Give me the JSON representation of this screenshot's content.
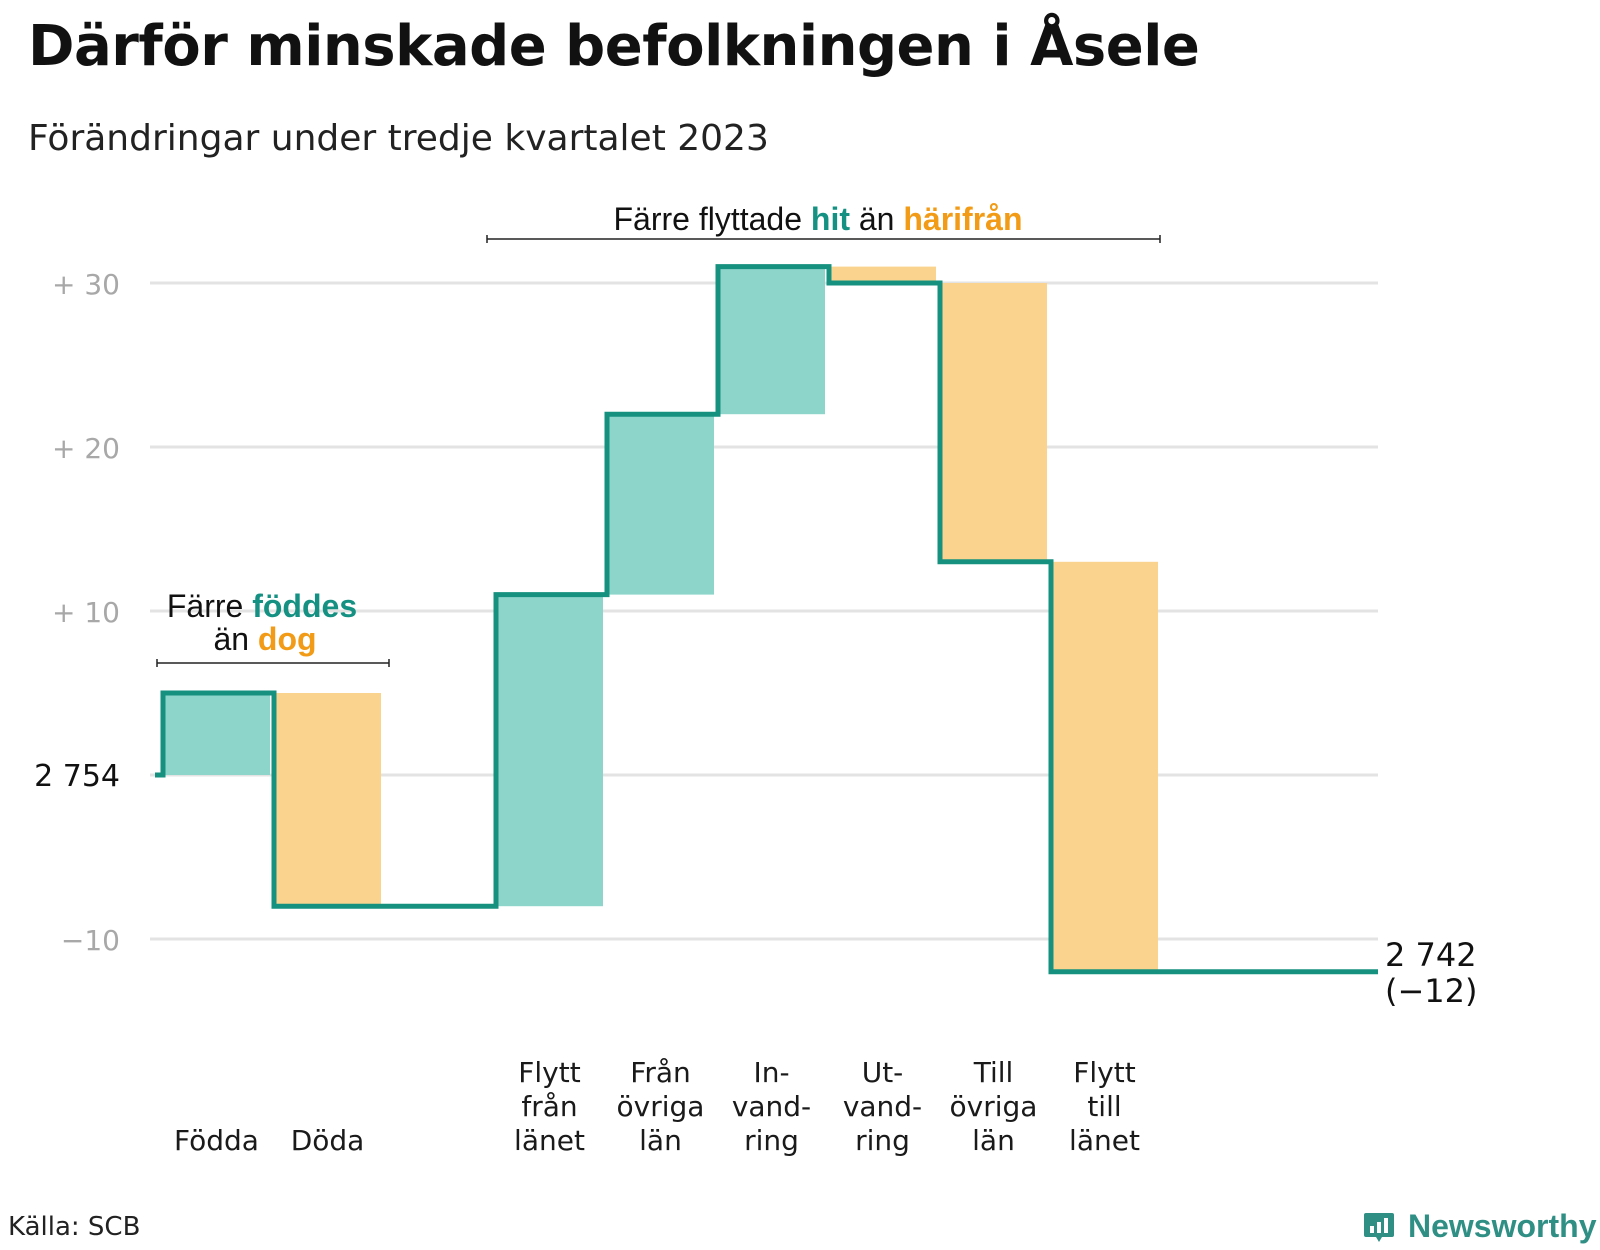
{
  "title": "Därför minskade befolkningen i Åsele",
  "subtitle": "Förändringar under tredje kvartalet 2023",
  "source": "Källa: SCB",
  "brand": {
    "name": "Newsworthy",
    "icon": "bar-chart-speech-bubble-icon"
  },
  "colors": {
    "increase": "#8dd5cb",
    "decrease": "#fad48f",
    "line": "#16917f",
    "accent_teal": "#149182",
    "accent_orange": "#f29b16",
    "grid": "#e3e3e3"
  },
  "annotations": {
    "births_deaths": {
      "part1": "Färre",
      "part2": "föddes",
      "part3": "än",
      "part4": "dog"
    },
    "migration": {
      "part1": "Färre flyttade",
      "part2": "hit",
      "part3": "än",
      "part4": "härifrån"
    }
  },
  "chart_data": {
    "type": "waterfall",
    "start": {
      "label": "2 754",
      "value": 2754
    },
    "end": {
      "label": "2 742",
      "change_label": "(−12)",
      "value": 2742,
      "change": -12
    },
    "y_ticks": [
      {
        "value": 30,
        "label": "+  30"
      },
      {
        "value": 20,
        "label": "+  20"
      },
      {
        "value": 10,
        "label": "+  10"
      },
      {
        "value": 0,
        "label": "2  754"
      },
      {
        "value": -10,
        "label": "−10"
      }
    ],
    "ylim": [
      -12,
      31
    ],
    "grid": true,
    "steps": [
      {
        "label": [
          "Födda"
        ],
        "change": 5,
        "type": "increase"
      },
      {
        "label": [
          "Döda"
        ],
        "change": -13,
        "type": "decrease"
      },
      {
        "label": [],
        "change": 0,
        "type": "gap"
      },
      {
        "label": [
          "Flytt",
          "från",
          "länet"
        ],
        "change": 19,
        "type": "increase"
      },
      {
        "label": [
          "Från",
          "övriga",
          "län"
        ],
        "change": 11,
        "type": "increase"
      },
      {
        "label": [
          "In-",
          "vand-",
          "ring"
        ],
        "change": 9,
        "type": "increase"
      },
      {
        "label": [
          "Ut-",
          "vand-",
          "ring"
        ],
        "change": -1,
        "type": "decrease"
      },
      {
        "label": [
          "Till",
          "övriga",
          "län"
        ],
        "change": -17,
        "type": "decrease"
      },
      {
        "label": [
          "Flytt",
          "till",
          "länet"
        ],
        "change": -25,
        "type": "decrease"
      }
    ]
  }
}
